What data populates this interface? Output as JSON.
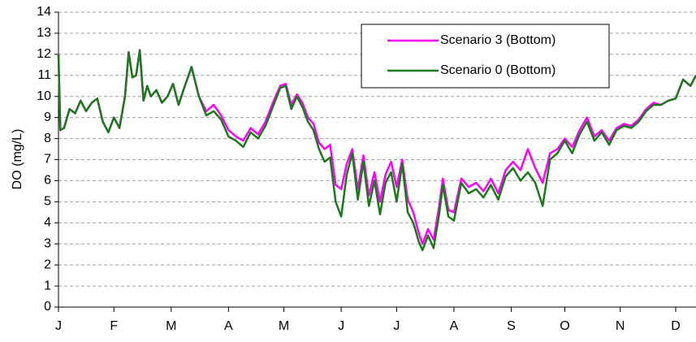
{
  "chart_data": {
    "type": "line",
    "y_label": "DO (mg/L)",
    "x": [
      0,
      1,
      3,
      6,
      9,
      12,
      15,
      18,
      21,
      24,
      27,
      30,
      33,
      36,
      38,
      40,
      42,
      44,
      46,
      48,
      50,
      53,
      56,
      59,
      62,
      65,
      68,
      72,
      76,
      80,
      84,
      88,
      92,
      96,
      100,
      104,
      108,
      112,
      116,
      120,
      123,
      126,
      129,
      132,
      135,
      138,
      141,
      144,
      147,
      150,
      153,
      156,
      159,
      162,
      165,
      168,
      171,
      174,
      177,
      180,
      183,
      186,
      189,
      192,
      195,
      197,
      200,
      203,
      206,
      208,
      211,
      214,
      218,
      222,
      226,
      230,
      234,
      238,
      242,
      246,
      250,
      254,
      258,
      262,
      266,
      270,
      274,
      278,
      282,
      286,
      290,
      294,
      298,
      302,
      306,
      310,
      314,
      318,
      322,
      326,
      330,
      334,
      338,
      342,
      345
    ],
    "series": [
      {
        "name": "Scenario 3 (Bottom)",
        "color": "#ff00ff",
        "values": [
          12.0,
          8.4,
          8.5,
          9.4,
          9.2,
          9.8,
          9.3,
          9.7,
          9.9,
          8.8,
          8.3,
          9.0,
          8.5,
          10.0,
          12.1,
          10.9,
          11.0,
          12.2,
          9.8,
          10.5,
          10.0,
          10.3,
          9.7,
          10.0,
          10.6,
          9.6,
          10.4,
          11.4,
          10.0,
          9.3,
          9.6,
          9.1,
          8.4,
          8.1,
          7.9,
          8.5,
          8.2,
          8.8,
          9.7,
          10.5,
          10.6,
          9.6,
          10.1,
          9.7,
          9.0,
          8.7,
          7.8,
          7.5,
          7.7,
          5.8,
          5.6,
          6.8,
          7.5,
          5.6,
          7.2,
          5.3,
          6.4,
          5.0,
          6.3,
          6.9,
          5.7,
          7.0,
          5.1,
          4.5,
          3.5,
          3.0,
          3.7,
          3.2,
          4.8,
          6.1,
          4.6,
          4.5,
          6.1,
          5.7,
          5.9,
          5.5,
          6.1,
          5.4,
          6.5,
          6.9,
          6.5,
          7.5,
          6.6,
          5.9,
          7.3,
          7.5,
          8.0,
          7.6,
          8.4,
          9.0,
          8.1,
          8.4,
          7.9,
          8.5,
          8.7,
          8.6,
          8.9,
          9.4,
          9.7,
          9.6,
          9.8,
          9.9,
          10.8,
          10.5,
          11.0
        ]
      },
      {
        "name": "Scenario 0 (Bottom)",
        "color": "#1a7a1a",
        "values": [
          12.0,
          8.4,
          8.5,
          9.4,
          9.2,
          9.8,
          9.3,
          9.7,
          9.9,
          8.8,
          8.3,
          9.0,
          8.5,
          10.0,
          12.1,
          10.9,
          11.0,
          12.2,
          9.8,
          10.5,
          10.0,
          10.3,
          9.7,
          10.0,
          10.6,
          9.6,
          10.4,
          11.4,
          10.0,
          9.1,
          9.3,
          8.9,
          8.1,
          7.9,
          7.6,
          8.3,
          8.0,
          8.6,
          9.5,
          10.4,
          10.5,
          9.4,
          10.0,
          9.5,
          8.8,
          8.4,
          7.5,
          6.9,
          7.1,
          5.0,
          4.3,
          6.3,
          7.3,
          5.1,
          6.9,
          4.8,
          6.0,
          4.4,
          5.9,
          6.4,
          5.0,
          6.8,
          4.5,
          4.0,
          3.1,
          2.7,
          3.4,
          2.8,
          4.4,
          5.8,
          4.3,
          4.1,
          5.9,
          5.4,
          5.6,
          5.2,
          5.8,
          5.1,
          6.2,
          6.6,
          6.0,
          6.4,
          5.9,
          4.8,
          7.0,
          7.3,
          7.9,
          7.3,
          8.2,
          8.8,
          7.9,
          8.3,
          7.7,
          8.4,
          8.6,
          8.5,
          8.8,
          9.3,
          9.6,
          9.6,
          9.8,
          9.9,
          10.8,
          10.5,
          11.0
        ]
      }
    ],
    "xlim": [
      0,
      345
    ],
    "xticks": [
      {
        "value": 0,
        "label": "J"
      },
      {
        "value": 30,
        "label": "F"
      },
      {
        "value": 61,
        "label": "M"
      },
      {
        "value": 92,
        "label": "A"
      },
      {
        "value": 122,
        "label": "M"
      },
      {
        "value": 153,
        "label": "J"
      },
      {
        "value": 183,
        "label": "J"
      },
      {
        "value": 214,
        "label": "A"
      },
      {
        "value": 245,
        "label": "S"
      },
      {
        "value": 274,
        "label": "O"
      },
      {
        "value": 304,
        "label": "N"
      },
      {
        "value": 334,
        "label": "D"
      }
    ],
    "ylim": [
      0,
      14
    ],
    "yticks": [
      0,
      1,
      2,
      3,
      4,
      5,
      6,
      7,
      8,
      9,
      10,
      11,
      12,
      13,
      14
    ],
    "grid": true,
    "legend": "top-right"
  }
}
